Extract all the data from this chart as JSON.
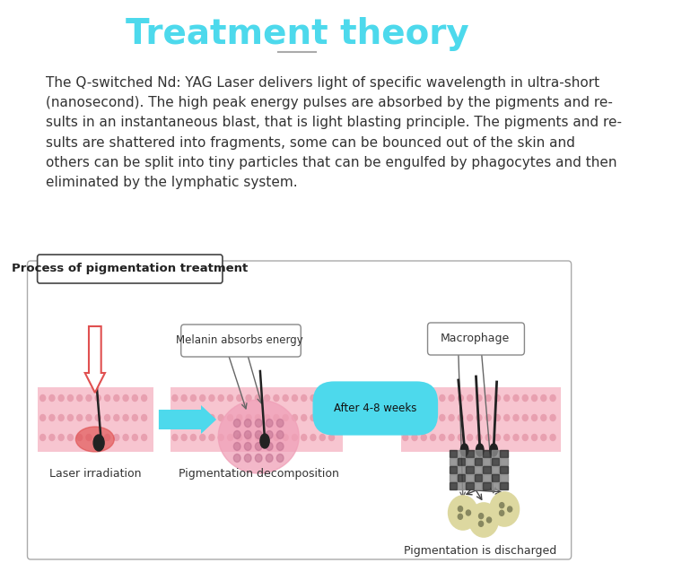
{
  "title": "Treatment theory",
  "title_color": "#4DD9EC",
  "title_fontsize": 28,
  "body_text": "The Q-switched Nd: YAG Laser delivers light of specific wavelength in ultra-short\n(nanosecond). The high peak energy pulses are absorbed by the pigments and re-\nsults in an instantaneous blast, that is light blasting principle. The pigments and re-\nsults are shattered into fragments, some can be bounced out of the skin and\nothers can be split into tiny particles that can be engulfed by phagocytes and then\neliminated by the lymphatic system.",
  "body_fontsize": 11,
  "body_color": "#333333",
  "box_label": "Process of pigmentation treatment",
  "label1": "Laser irradiation",
  "label2": "Pigmentation decomposition",
  "label3": "Pigmentation is discharged",
  "callout1": "Melanin absorbs energy",
  "callout2": "Macrophage",
  "arrow_label": "After 4-8 weeks",
  "bg_color": "#ffffff",
  "box_border_color": "#aaaaaa",
  "skin_pink": "#f7c5d0",
  "skin_dots": "#e8a0b0",
  "laser_red": "#e05050",
  "arrow_blue": "#4DD9EC"
}
